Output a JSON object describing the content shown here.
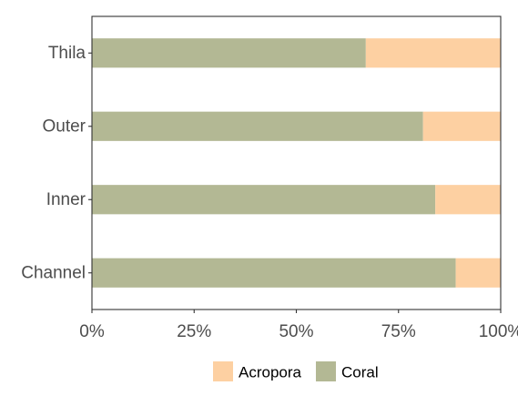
{
  "chart_data": {
    "type": "bar",
    "orientation": "horizontal",
    "stacked": true,
    "categories": [
      "Channel",
      "Inner",
      "Outer",
      "Thila"
    ],
    "series": [
      {
        "name": "Coral",
        "values": [
          89,
          84,
          81,
          67
        ],
        "color": "#b3b894"
      },
      {
        "name": "Acropora",
        "values": [
          11,
          16,
          19,
          33
        ],
        "color": "#fdd0a2"
      }
    ],
    "xticks": [
      "0%",
      "25%",
      "50%",
      "75%",
      "100%"
    ],
    "xlim": [
      0,
      100
    ],
    "legend_order": [
      "Acropora",
      "Coral"
    ],
    "legend_position": "bottom",
    "grid": false,
    "title": "",
    "xlabel": "",
    "ylabel": ""
  }
}
